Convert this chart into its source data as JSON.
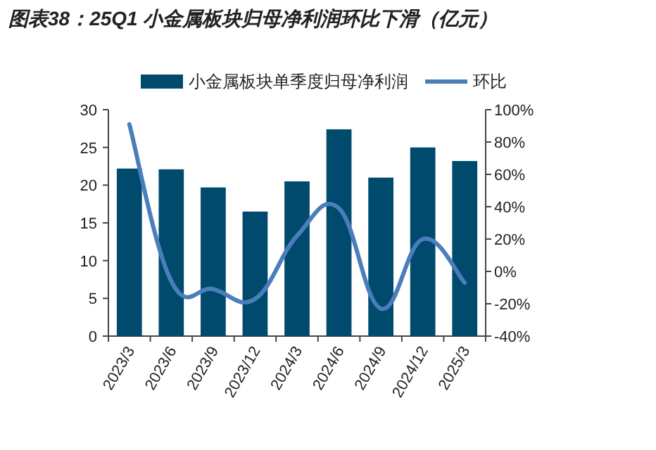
{
  "chart_data": {
    "type": "bar",
    "title": "图表38：25Q1 小金属板块归母净利润环比下滑（亿元）",
    "categories": [
      "2023/3",
      "2023/6",
      "2023/9",
      "2023/12",
      "2024/3",
      "2024/6",
      "2024/9",
      "2024/12",
      "2025/3"
    ],
    "series": [
      {
        "name": "小金属板块单季度归母净利润",
        "color": "#004a6e",
        "values": [
          22.2,
          22.1,
          19.7,
          16.5,
          20.5,
          27.4,
          21.0,
          25.0,
          23.2
        ]
      },
      {
        "name": "环比",
        "type": "line",
        "axis": "y2",
        "color": "#4a7ebb",
        "values": [
          91,
          -6,
          -11,
          -17,
          22,
          39,
          -23,
          20,
          -7
        ]
      }
    ],
    "ylim": [
      0,
      30
    ],
    "yticks": [
      0,
      5,
      10,
      15,
      20,
      25,
      30
    ],
    "y2lim": [
      -40,
      100
    ],
    "y2ticks": [
      {
        "value": -40,
        "label": "-40%"
      },
      {
        "value": -20,
        "label": "-20%"
      },
      {
        "value": 0,
        "label": "0%"
      },
      {
        "value": 20,
        "label": "20%"
      },
      {
        "value": 40,
        "label": "40%"
      },
      {
        "value": 60,
        "label": "60%"
      },
      {
        "value": 80,
        "label": "80%"
      },
      {
        "value": 100,
        "label": "100%"
      }
    ],
    "legend": "top",
    "grid": false
  }
}
